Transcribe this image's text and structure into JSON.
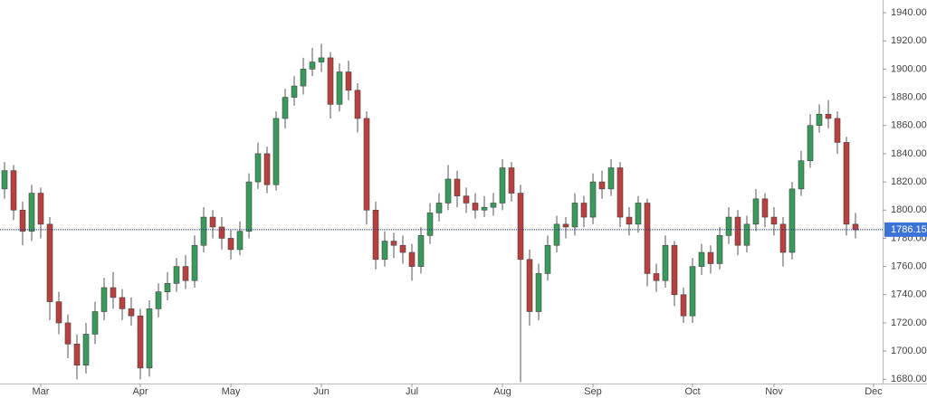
{
  "chart_data": {
    "type": "candlestick",
    "categories": [
      null,
      null,
      null,
      null,
      "Mar",
      null,
      null,
      null,
      null,
      null,
      null,
      null,
      null,
      null,
      null,
      "Apr",
      null,
      null,
      null,
      null,
      null,
      null,
      null,
      null,
      null,
      "May",
      null,
      null,
      null,
      null,
      null,
      null,
      null,
      null,
      null,
      "Jun",
      null,
      null,
      null,
      null,
      null,
      null,
      null,
      null,
      null,
      "Jul",
      null,
      null,
      null,
      null,
      null,
      null,
      null,
      null,
      null,
      "Aug",
      null,
      null,
      null,
      null,
      null,
      null,
      null,
      null,
      null,
      "Sep",
      null,
      null,
      null,
      null,
      null,
      null,
      null,
      null,
      null,
      null,
      "Oct",
      null,
      null,
      null,
      null,
      null,
      null,
      null,
      null,
      "Nov",
      null,
      null,
      null,
      null,
      null,
      null,
      null,
      null,
      null,
      null,
      "Dec"
    ],
    "open": [
      1815,
      1828,
      1800,
      1785,
      1812,
      1790,
      1735,
      1720,
      1705,
      1690,
      1712,
      1728,
      1745,
      1738,
      1730,
      1725,
      1688,
      1730,
      1742,
      1748,
      1760,
      1750,
      1775,
      1795,
      1788,
      1780,
      1772,
      1785,
      1820,
      1840,
      1818,
      1865,
      1880,
      1888,
      1900,
      1905,
      1908,
      1875,
      1898,
      1885,
      1865,
      1800,
      1765,
      1778,
      1775,
      1770,
      1760,
      1782,
      1798,
      1805,
      1822,
      1810,
      1805,
      1800,
      1802,
      1805,
      1830,
      1812,
      1765,
      1728,
      1755,
      1775,
      1790,
      1788,
      1805,
      1795,
      1820,
      1815,
      1830,
      1795,
      1790,
      1805,
      1755,
      1750,
      1775,
      1740,
      1725,
      1760,
      1770,
      1762,
      1782,
      1795,
      1775,
      1790,
      1808,
      1795,
      1790,
      1770,
      1815,
      1835,
      1860,
      1868,
      1865,
      1848,
      1790,
      null,
      null
    ],
    "high": [
      1834,
      1832,
      1806,
      1818,
      1816,
      1795,
      1742,
      1726,
      1712,
      1720,
      1735,
      1752,
      1756,
      1744,
      1738,
      1730,
      1736,
      1748,
      1756,
      1766,
      1768,
      1782,
      1802,
      1800,
      1795,
      1786,
      1792,
      1826,
      1848,
      1845,
      1870,
      1886,
      1895,
      1908,
      1915,
      1918,
      1912,
      1904,
      1906,
      1890,
      1870,
      1806,
      1785,
      1784,
      1782,
      1776,
      1788,
      1805,
      1812,
      1832,
      1828,
      1816,
      1812,
      1810,
      1812,
      1836,
      1834,
      1818,
      1772,
      1762,
      1782,
      1796,
      1795,
      1812,
      1810,
      1826,
      1828,
      1836,
      1834,
      1802,
      1810,
      1808,
      1762,
      1782,
      1778,
      1745,
      1766,
      1776,
      1775,
      1788,
      1802,
      1800,
      1796,
      1815,
      1812,
      1802,
      1795,
      1820,
      1842,
      1868,
      1875,
      1878,
      1870,
      1852,
      1798,
      null,
      null
    ],
    "low": [
      1808,
      1793,
      1775,
      1778,
      1780,
      1722,
      1712,
      1695,
      1680,
      1684,
      1705,
      1722,
      1730,
      1722,
      1718,
      1680,
      1682,
      1724,
      1736,
      1742,
      1744,
      1745,
      1770,
      1780,
      1772,
      1765,
      1768,
      1780,
      1815,
      1812,
      1814,
      1858,
      1874,
      1882,
      1895,
      1898,
      1865,
      1870,
      1878,
      1855,
      1790,
      1758,
      1760,
      1766,
      1762,
      1750,
      1755,
      1776,
      1792,
      1800,
      1802,
      1798,
      1794,
      1795,
      1796,
      1800,
      1806,
      1678,
      1718,
      1722,
      1750,
      1770,
      1780,
      1782,
      1788,
      1790,
      1808,
      1810,
      1788,
      1782,
      1784,
      1746,
      1742,
      1745,
      1732,
      1720,
      1720,
      1754,
      1755,
      1758,
      1776,
      1768,
      1770,
      1785,
      1788,
      1782,
      1760,
      1765,
      1810,
      1830,
      1855,
      1858,
      1840,
      1782,
      1780,
      null,
      null
    ],
    "close": [
      1828,
      1800,
      1785,
      1812,
      1790,
      1735,
      1720,
      1705,
      1690,
      1712,
      1728,
      1745,
      1738,
      1730,
      1725,
      1688,
      1730,
      1742,
      1748,
      1760,
      1750,
      1775,
      1795,
      1788,
      1780,
      1772,
      1785,
      1820,
      1840,
      1818,
      1865,
      1880,
      1888,
      1900,
      1905,
      1908,
      1875,
      1898,
      1885,
      1865,
      1800,
      1765,
      1778,
      1775,
      1770,
      1760,
      1782,
      1798,
      1805,
      1822,
      1810,
      1805,
      1800,
      1802,
      1805,
      1830,
      1812,
      1765,
      1728,
      1755,
      1775,
      1790,
      1788,
      1805,
      1795,
      1820,
      1815,
      1830,
      1795,
      1790,
      1805,
      1755,
      1750,
      1775,
      1740,
      1725,
      1760,
      1770,
      1762,
      1782,
      1795,
      1775,
      1790,
      1808,
      1795,
      1790,
      1770,
      1815,
      1835,
      1860,
      1868,
      1865,
      1848,
      1790,
      1786,
      null,
      null
    ],
    "up_color": "#3a9a5c",
    "down_color": "#b8403e",
    "ylim": [
      1677,
      1949
    ],
    "yticks": [
      {
        "value": 1680,
        "label": "1680.00"
      },
      {
        "value": 1700,
        "label": "1700.00"
      },
      {
        "value": 1720,
        "label": "1720.00"
      },
      {
        "value": 1740,
        "label": "1740.00"
      },
      {
        "value": 1760,
        "label": "1760.00"
      },
      {
        "value": 1780,
        "label": "1780.00"
      },
      {
        "value": 1800,
        "label": "1800.00"
      },
      {
        "value": 1820,
        "label": "1820.00"
      },
      {
        "value": 1840,
        "label": "1840.00"
      },
      {
        "value": 1860,
        "label": "1860.00"
      },
      {
        "value": 1880,
        "label": "1880.00"
      },
      {
        "value": 1900,
        "label": "1900.00"
      },
      {
        "value": 1920,
        "label": "1920.00"
      },
      {
        "value": 1940,
        "label": "1940.00"
      }
    ],
    "last_price": 1786.15,
    "last_price_color": "#3b73d9",
    "grid": false
  }
}
